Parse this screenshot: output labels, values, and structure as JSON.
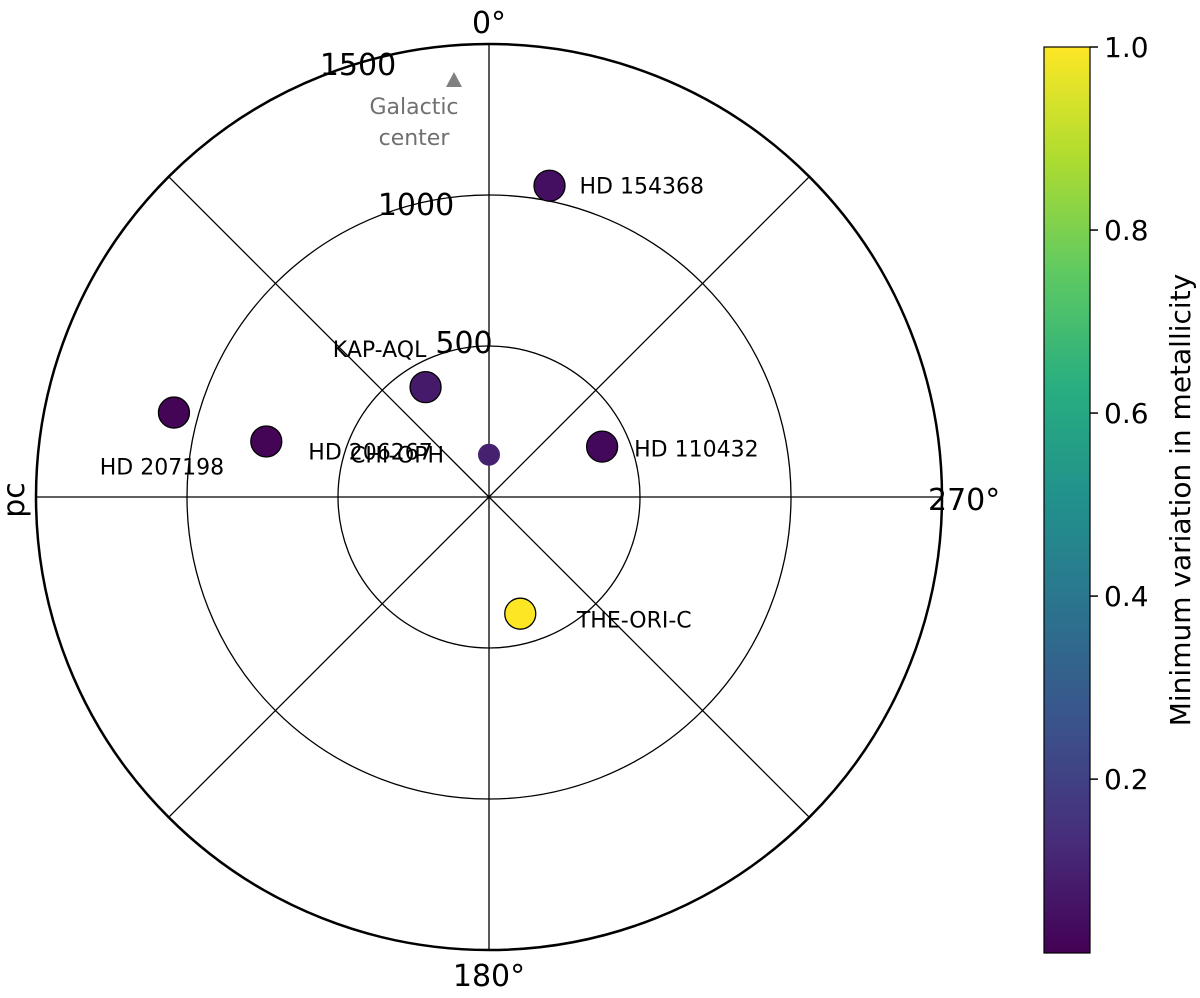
{
  "chart_data": {
    "type": "scatter",
    "projection": "polar",
    "angle_zero": "top",
    "angle_direction": "counterclockwise",
    "theta_ticks": [
      0,
      180,
      270
    ],
    "theta_tick_labels": [
      "0°",
      "180°",
      "270°"
    ],
    "radial_ticks": [
      500,
      1000,
      1500
    ],
    "radial_tick_labels": [
      "500",
      "1000",
      "1500"
    ],
    "rlim": [
      0,
      1500
    ],
    "radial_label": "pc",
    "grid": true,
    "marker": {
      "label_lines": [
        "Galactic",
        "center"
      ],
      "theta": 0,
      "r": 1450,
      "color": "#808080",
      "icon": "triangle-icon"
    },
    "points": [
      {
        "name": "HD 154368",
        "theta": 349,
        "r": 1050,
        "value": 0.05
      },
      {
        "name": "KAP-AQL",
        "theta": 30,
        "r": 420,
        "value": 0.08
      },
      {
        "name": "HD 110432",
        "theta": 294,
        "r": 410,
        "value": 0.03
      },
      {
        "name": "CHI-OPH",
        "theta": 0,
        "r": 140,
        "value": 0.1
      },
      {
        "name": "HD 206267",
        "theta": 76,
        "r": 760,
        "value": 0.02
      },
      {
        "name": "HD 207198",
        "theta": 75,
        "r": 1080,
        "value": 0.02
      },
      {
        "name": "THE-ORI-C",
        "theta": 195,
        "r": 400,
        "value": 1.0
      }
    ],
    "colorbar": {
      "label": "Minimum variation in metallicity",
      "range": [
        0.01,
        1.0
      ],
      "ticks": [
        0.2,
        0.4,
        0.6,
        0.8,
        1.0
      ],
      "tick_labels": [
        "0.2",
        "0.4",
        "0.6",
        "0.8",
        "1.0"
      ],
      "colormap": "viridis"
    }
  }
}
